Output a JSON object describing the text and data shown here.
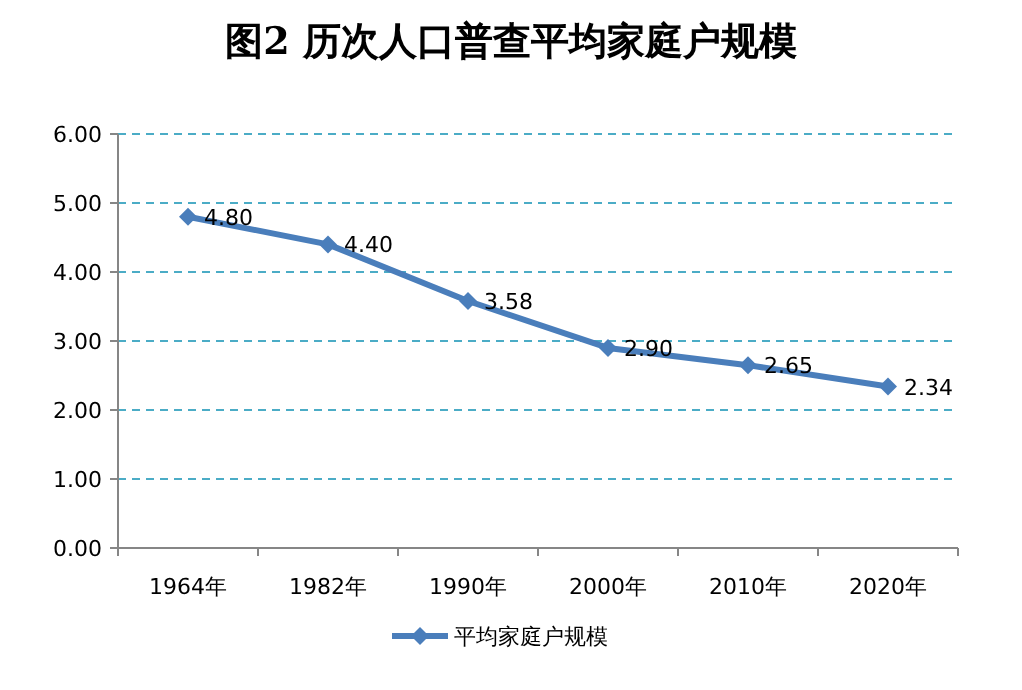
{
  "chart_data": {
    "type": "line",
    "title": "图2  历次人口普查平均家庭户规模",
    "categories": [
      "1964年",
      "1982年",
      "1990年",
      "2000年",
      "2010年",
      "2020年"
    ],
    "series": [
      {
        "name": "平均家庭户规模",
        "color": "#4a7ebb",
        "values": [
          4.8,
          4.4,
          3.58,
          2.9,
          2.65,
          2.34
        ],
        "value_labels": [
          "4.80",
          "4.40",
          "3.58",
          "2.90",
          "2.65",
          "2.34"
        ]
      }
    ],
    "ylim": [
      0,
      6
    ],
    "yticks": [
      {
        "value": 0,
        "label": "0.00"
      },
      {
        "value": 1,
        "label": "1.00"
      },
      {
        "value": 2,
        "label": "2.00"
      },
      {
        "value": 3,
        "label": "3.00"
      },
      {
        "value": 4,
        "label": "4.00"
      },
      {
        "value": 5,
        "label": "5.00"
      },
      {
        "value": 6,
        "label": "6.00"
      }
    ],
    "grid": "y",
    "legend": "bottom",
    "marker": "diamond"
  }
}
